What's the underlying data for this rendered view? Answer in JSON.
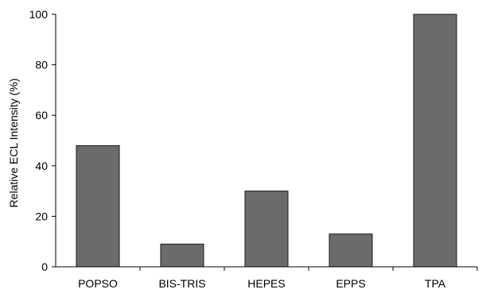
{
  "chart_data": {
    "type": "bar",
    "categories": [
      "POPSO",
      "BIS-TRIS",
      "HEPES",
      "EPPS",
      "TPA"
    ],
    "values": [
      48,
      9,
      30,
      13,
      100
    ],
    "title": "",
    "xlabel": "",
    "ylabel": "Relative ECL Intensity (%)",
    "ylim": [
      0,
      100
    ],
    "yticks": [
      0,
      20,
      40,
      60,
      80,
      100
    ],
    "grid": false,
    "legend": "none",
    "bar_color": "#6b6b6b",
    "bar_edge_color": "#1a1a1a",
    "axis_color": "#000000"
  }
}
